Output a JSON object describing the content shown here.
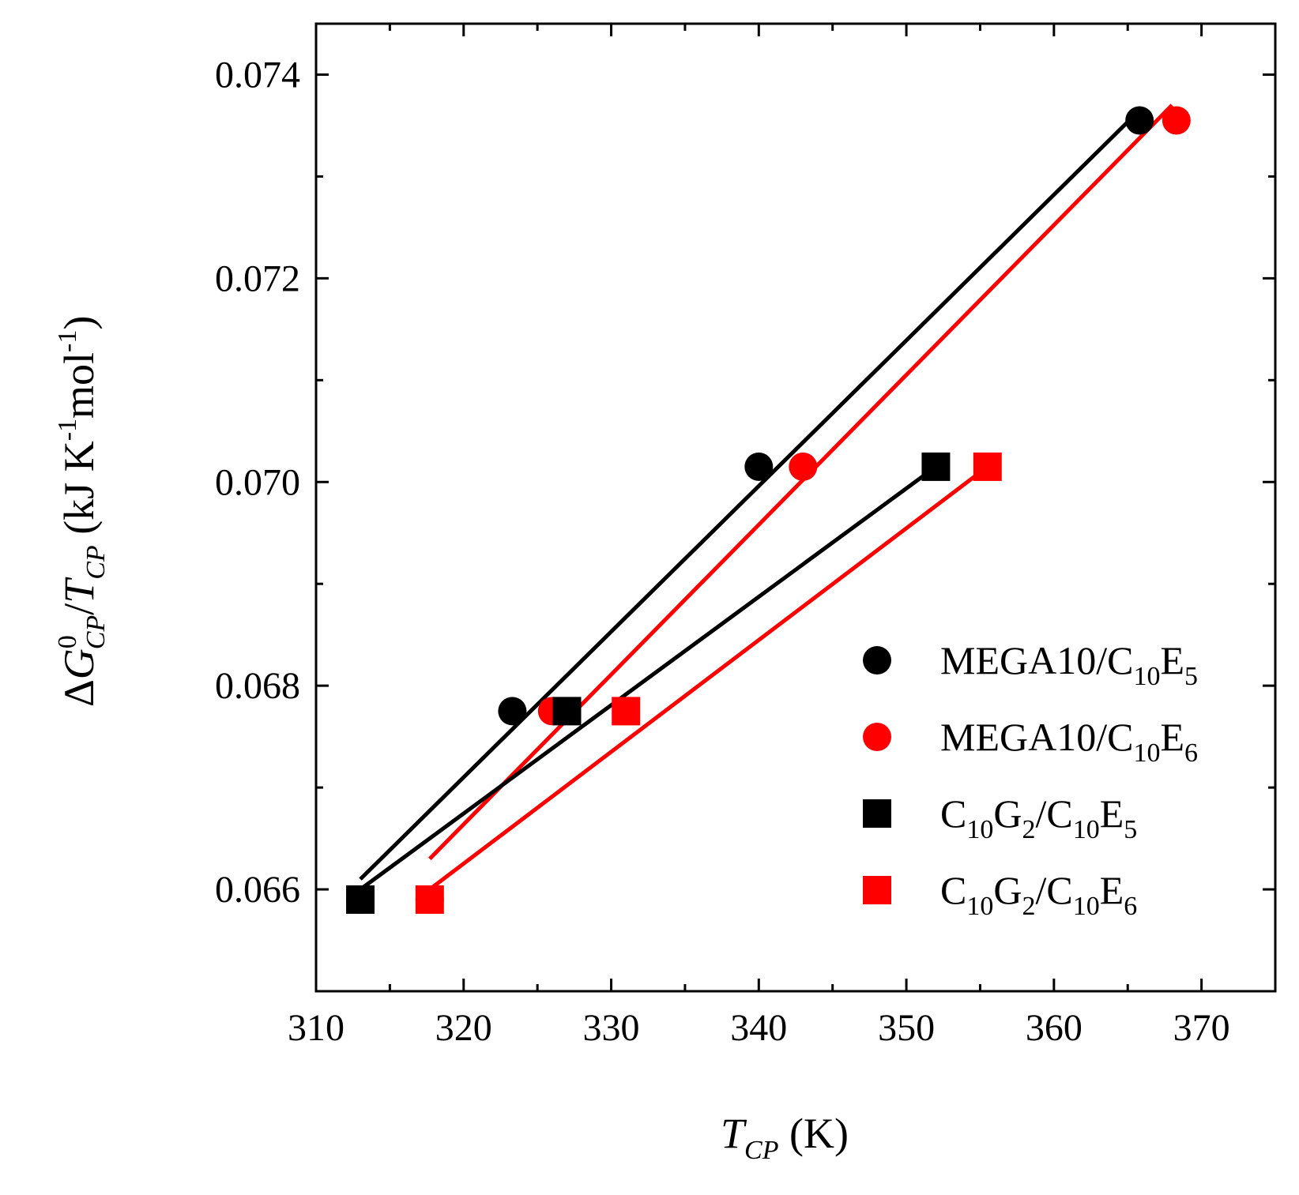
{
  "chart_data": {
    "type": "scatter",
    "title": "",
    "xlabel": {
      "main": "T",
      "sub": "CP",
      "unit": " (K)"
    },
    "ylabel": {
      "delta": "Δ",
      "g": "G",
      "g_sup": "0",
      "g_sub": "CP",
      "slash": "/",
      "t": "T",
      "t_sub": "CP",
      "unit_a": " (kJ K",
      "unit_sup1": "-1",
      "unit_b": "mol",
      "unit_sup2": "-1",
      "unit_c": ")"
    },
    "xlim": [
      310,
      375
    ],
    "ylim": [
      0.065,
      0.0745
    ],
    "xticks": [
      310,
      320,
      330,
      340,
      350,
      360,
      370
    ],
    "xtick_labels": [
      "310",
      "320",
      "330",
      "340",
      "350",
      "360",
      "370"
    ],
    "yticks": [
      0.066,
      0.068,
      0.07,
      0.072,
      0.074
    ],
    "ytick_labels": [
      "0.066",
      "0.068",
      "0.070",
      "0.072",
      "0.074"
    ],
    "legend_position": "right-middle",
    "series": [
      {
        "name": "MEGA10/C10E5",
        "label_parts": [
          {
            "t": "MEGA10/C"
          },
          {
            "t": "10",
            "sub": true
          },
          {
            "t": "E"
          },
          {
            "t": "5",
            "sub": true
          }
        ],
        "marker": "circle",
        "color": "#000000",
        "points": [
          [
            313.0,
            0.0659
          ],
          [
            323.3,
            0.06775
          ],
          [
            340.0,
            0.07015
          ],
          [
            365.8,
            0.07355
          ]
        ],
        "fit": [
          [
            313.0,
            0.0661
          ],
          [
            365.8,
            0.07365
          ]
        ]
      },
      {
        "name": "MEGA10/C10E6",
        "label_parts": [
          {
            "t": "MEGA10/C"
          },
          {
            "t": "10",
            "sub": true
          },
          {
            "t": "E"
          },
          {
            "t": "6",
            "sub": true
          }
        ],
        "marker": "circle",
        "color": "#ff0000",
        "points": [
          [
            317.7,
            0.0659
          ],
          [
            326.0,
            0.06775
          ],
          [
            343.0,
            0.07015
          ],
          [
            368.3,
            0.07355
          ]
        ],
        "fit": [
          [
            317.7,
            0.0663
          ],
          [
            368.0,
            0.0737
          ]
        ]
      },
      {
        "name": "C10G2/C10E5",
        "label_parts": [
          {
            "t": "C"
          },
          {
            "t": "10",
            "sub": true
          },
          {
            "t": "G"
          },
          {
            "t": "2",
            "sub": true
          },
          {
            "t": "/C"
          },
          {
            "t": "10",
            "sub": true
          },
          {
            "t": "E"
          },
          {
            "t": "5",
            "sub": true
          }
        ],
        "marker": "square",
        "color": "#000000",
        "points": [
          [
            313.0,
            0.0659
          ],
          [
            327.0,
            0.06775
          ],
          [
            352.0,
            0.07015
          ]
        ],
        "fit": [
          [
            313.0,
            0.066
          ],
          [
            352.0,
            0.07015
          ]
        ]
      },
      {
        "name": "C10G2/C10E6",
        "label_parts": [
          {
            "t": "C"
          },
          {
            "t": "10",
            "sub": true
          },
          {
            "t": "G"
          },
          {
            "t": "2",
            "sub": true
          },
          {
            "t": "/C"
          },
          {
            "t": "10",
            "sub": true
          },
          {
            "t": "E"
          },
          {
            "t": "6",
            "sub": true
          }
        ],
        "marker": "square",
        "color": "#ff0000",
        "points": [
          [
            317.7,
            0.0659
          ],
          [
            331.0,
            0.06775
          ],
          [
            355.5,
            0.07015
          ]
        ],
        "fit": [
          [
            317.7,
            0.066
          ],
          [
            355.5,
            0.07015
          ]
        ]
      }
    ]
  }
}
